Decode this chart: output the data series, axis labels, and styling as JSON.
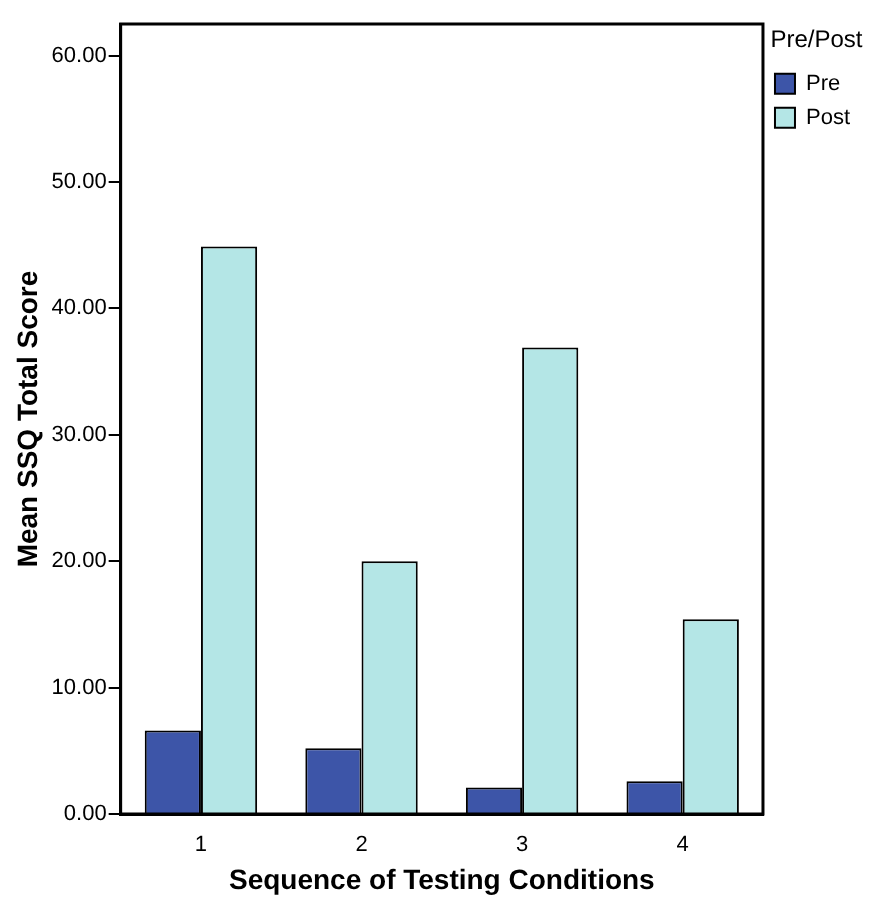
{
  "chart_data": {
    "type": "bar",
    "xlabel": "Sequence of Testing Conditions",
    "ylabel": "Mean SSQ Total Score",
    "legend_title": "Pre/Post",
    "categories": [
      "1",
      "2",
      "3",
      "4"
    ],
    "series": [
      {
        "name": "Pre",
        "color": "#3d55a8",
        "values": [
          6.6,
          5.2,
          2.1,
          2.6
        ]
      },
      {
        "name": "Post",
        "color": "#b4e6e6",
        "values": [
          44.9,
          20.0,
          36.9,
          15.4
        ]
      }
    ],
    "ylim": [
      0,
      62.5
    ],
    "yticks": [
      {
        "value": 0,
        "label": "0.00"
      },
      {
        "value": 10,
        "label": "10.00"
      },
      {
        "value": 20,
        "label": "20.00"
      },
      {
        "value": 30,
        "label": "30.00"
      },
      {
        "value": 40,
        "label": "40.00"
      },
      {
        "value": 50,
        "label": "50.00"
      },
      {
        "value": 60,
        "label": "60.00"
      }
    ],
    "grid": false,
    "legend": "top right"
  }
}
